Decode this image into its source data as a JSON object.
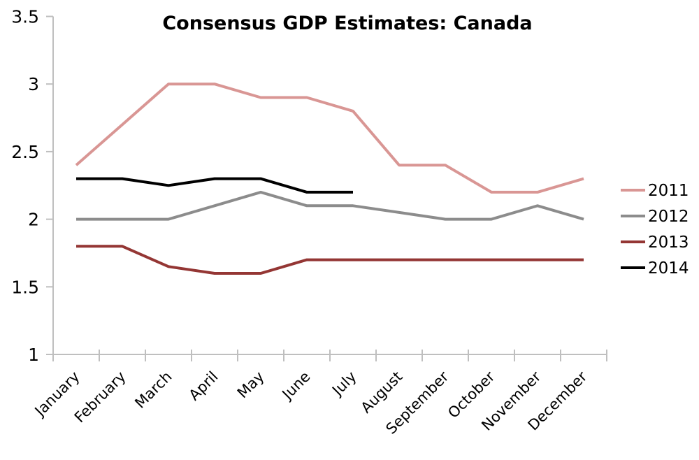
{
  "chart_data": {
    "type": "line",
    "title": "Consensus GDP Estimates: Canada",
    "categories": [
      "January",
      "February",
      "March",
      "April",
      "May",
      "June",
      "July",
      "August",
      "September",
      "October",
      "November",
      "December"
    ],
    "series": [
      {
        "name": "2011",
        "color": "#D99694",
        "values": [
          2.4,
          2.7,
          3.0,
          3.0,
          2.9,
          2.9,
          2.8,
          2.4,
          2.4,
          2.2,
          2.2,
          2.3
        ]
      },
      {
        "name": "2012",
        "color": "#8C8C8C",
        "values": [
          2.0,
          2.0,
          2.0,
          2.1,
          2.2,
          2.1,
          2.1,
          2.05,
          2.0,
          2.0,
          2.1,
          2.0
        ]
      },
      {
        "name": "2013",
        "color": "#943634",
        "values": [
          1.8,
          1.8,
          1.65,
          1.6,
          1.6,
          1.7,
          1.7,
          1.7,
          1.7,
          1.7,
          1.7,
          1.7
        ]
      },
      {
        "name": "2014",
        "color": "#000000",
        "values": [
          2.3,
          2.3,
          2.25,
          2.3,
          2.3,
          2.2,
          2.2,
          null,
          null,
          null,
          null,
          null
        ]
      }
    ],
    "ylim": [
      1,
      3.5
    ],
    "ytick_step": 0.5,
    "ytick_labels": [
      "1",
      "1.5",
      "2",
      "2.5",
      "3",
      "3.5"
    ],
    "xlabel": "",
    "ylabel": "",
    "grid": false,
    "legend_position": "right",
    "axis_color": "#BFBFBF",
    "text_color": "#000000"
  }
}
